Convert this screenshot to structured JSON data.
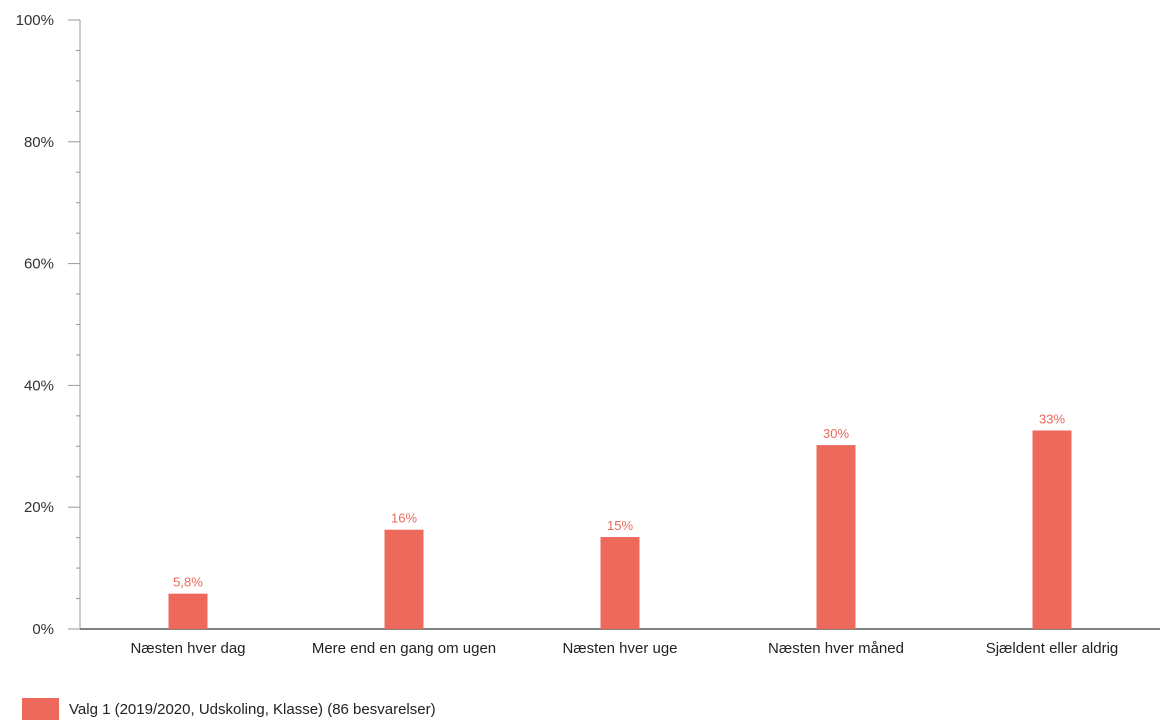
{
  "chart_data": {
    "type": "bar",
    "categories": [
      "Næsten hver dag",
      "Mere end en gang om ugen",
      "Næsten hver uge",
      "Næsten hver måned",
      "Sjældent eller aldrig"
    ],
    "series": [
      {
        "name": "Valg 1 (2019/2020, Udskoling, Klasse) (86 besvarelser)",
        "values": [
          5.8,
          16.3,
          15.1,
          30.2,
          32.6
        ],
        "labels": [
          "5,8%",
          "16%",
          "15%",
          "30%",
          "33%"
        ],
        "color": "#ec695c"
      }
    ],
    "ylim": [
      0,
      100
    ],
    "yticks": [
      0,
      20,
      40,
      60,
      80,
      100
    ],
    "ytick_labels": [
      "0%",
      "20%",
      "40%",
      "60%",
      "80%",
      "100%"
    ],
    "title": "",
    "xlabel": "",
    "ylabel": "",
    "grid": false,
    "legend_position": "bottom-left"
  }
}
